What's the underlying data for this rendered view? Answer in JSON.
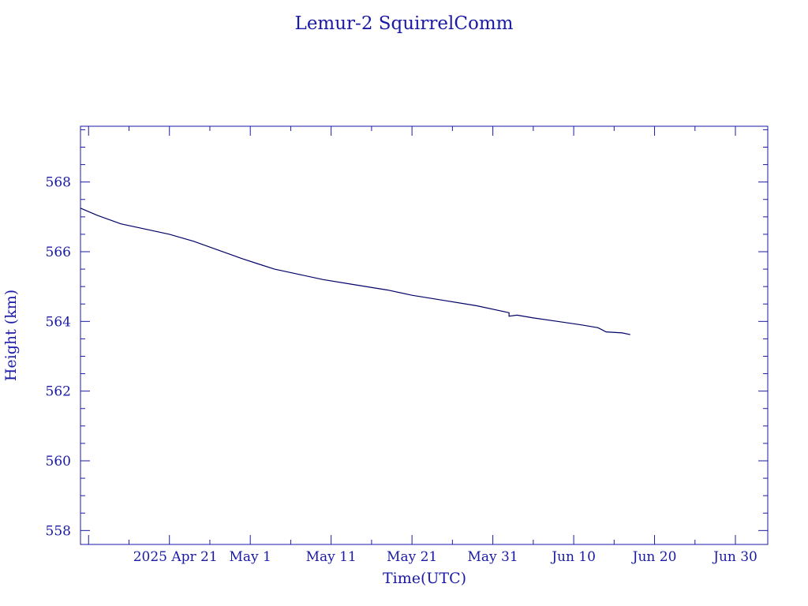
{
  "chart_data": {
    "type": "line",
    "title": "Lemur-2 SquirrelComm",
    "xlabel": "Time(UTC)",
    "ylabel": "Height (km)",
    "x_axis": {
      "type": "date",
      "range": [
        "2025-04-10",
        "2025-07-04"
      ],
      "ticks": [
        {
          "date": "2025-04-21",
          "label": "2025 Apr 21"
        },
        {
          "date": "2025-05-01",
          "label": "May  1"
        },
        {
          "date": "2025-05-11",
          "label": "May 11"
        },
        {
          "date": "2025-05-21",
          "label": "May 21"
        },
        {
          "date": "2025-05-31",
          "label": "May 31"
        },
        {
          "date": "2025-06-10",
          "label": "Jun 10"
        },
        {
          "date": "2025-06-20",
          "label": "Jun 20"
        },
        {
          "date": "2025-06-30",
          "label": "Jun 30"
        }
      ]
    },
    "y_axis": {
      "range": [
        557.6,
        569.6
      ],
      "ticks": [
        558,
        560,
        562,
        564,
        566,
        568
      ]
    },
    "grid": false,
    "line_color": "#000066",
    "axis_color": "#1a1aa6",
    "series": [
      {
        "points": [
          {
            "x": "2025-04-10",
            "y": 567.25
          },
          {
            "x": "2025-04-12",
            "y": 567.05
          },
          {
            "x": "2025-04-15",
            "y": 566.8
          },
          {
            "x": "2025-04-18",
            "y": 566.65
          },
          {
            "x": "2025-04-21",
            "y": 566.5
          },
          {
            "x": "2025-04-24",
            "y": 566.3
          },
          {
            "x": "2025-04-27",
            "y": 566.05
          },
          {
            "x": "2025-04-30",
            "y": 565.8
          },
          {
            "x": "2025-05-02",
            "y": 565.65
          },
          {
            "x": "2025-05-04",
            "y": 565.5
          },
          {
            "x": "2025-05-07",
            "y": 565.35
          },
          {
            "x": "2025-05-10",
            "y": 565.2
          },
          {
            "x": "2025-05-14",
            "y": 565.05
          },
          {
            "x": "2025-05-18",
            "y": 564.9
          },
          {
            "x": "2025-05-21",
            "y": 564.75
          },
          {
            "x": "2025-05-25",
            "y": 564.6
          },
          {
            "x": "2025-05-29",
            "y": 564.45
          },
          {
            "x": "2025-06-01",
            "y": 564.3
          },
          {
            "x": "2025-06-02",
            "y": 564.25
          },
          {
            "x": "2025-06-02",
            "y": 564.15
          },
          {
            "x": "2025-06-03",
            "y": 564.18
          },
          {
            "x": "2025-06-05",
            "y": 564.1
          },
          {
            "x": "2025-06-08",
            "y": 564.0
          },
          {
            "x": "2025-06-11",
            "y": 563.9
          },
          {
            "x": "2025-06-13",
            "y": 563.82
          },
          {
            "x": "2025-06-14",
            "y": 563.7
          },
          {
            "x": "2025-06-16",
            "y": 563.67
          },
          {
            "x": "2025-06-17",
            "y": 563.62
          }
        ]
      }
    ]
  }
}
